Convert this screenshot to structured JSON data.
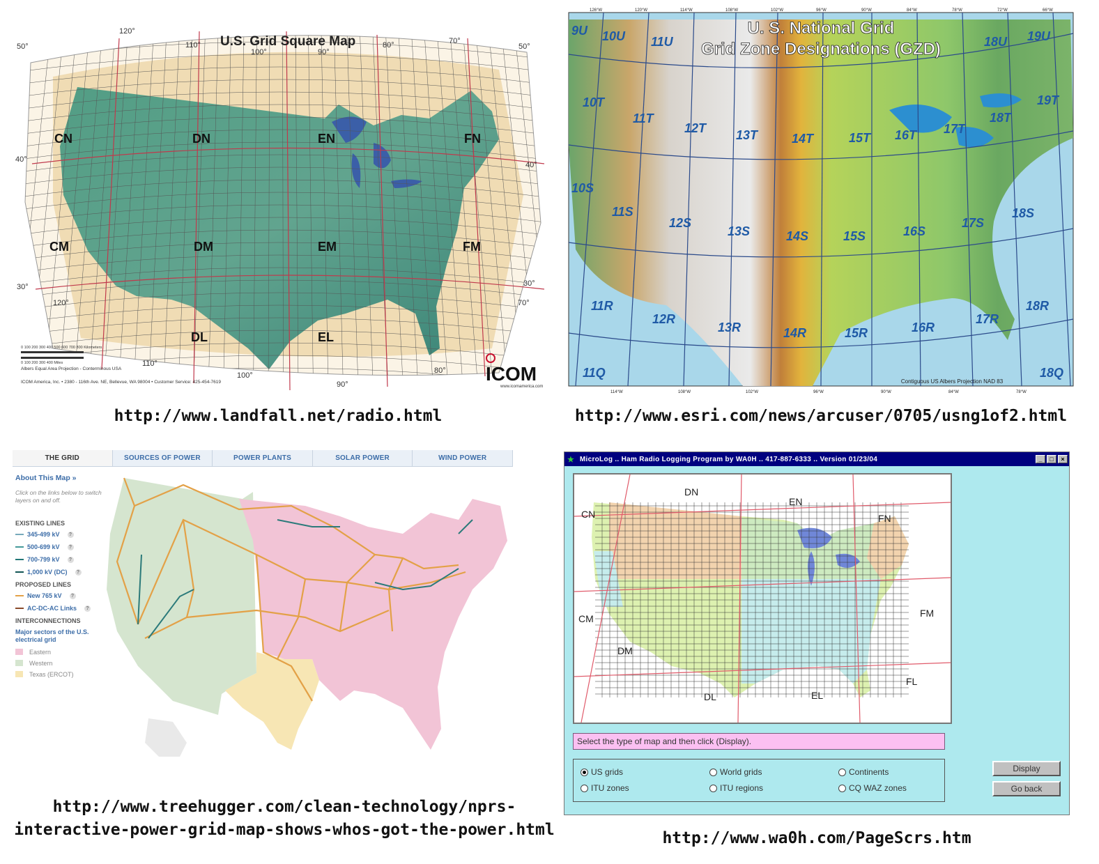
{
  "panel1": {
    "title": "U.S. Grid Square Map",
    "fields": [
      "CN",
      "DN",
      "EN",
      "FN",
      "CM",
      "DM",
      "EM",
      "FM",
      "DL",
      "EL"
    ],
    "lat_labels": [
      "50°",
      "40°",
      "30°",
      "50°",
      "40°",
      "30°"
    ],
    "lon_labels": [
      "120°",
      "110°",
      "100°",
      "90°",
      "80°",
      "70°",
      "120°",
      "110°",
      "100°",
      "90°",
      "80°",
      "70°"
    ],
    "projection": "Albers Equal Area Projection - Conterminous USA",
    "scale_km": "0  100 200 300 400 500 600 700 800 Kilometers",
    "scale_mi": "0    100    200    300    400 Miles",
    "company": "ICOM America, Inc.  •  2380 - 116th Ave. NE, Bellevue, WA 98004  •  Customer Service: 425-454-7619",
    "logo": "ICOM",
    "logo_url": "www.icomamerica.com",
    "caption": "http://www.landfall.net/radio.html"
  },
  "panel2": {
    "title_line1": "U. S. National Grid",
    "title_line2": "Grid Zone Designations (GZD)",
    "zones": [
      "9U",
      "10U",
      "11U",
      "18U",
      "19U",
      "10T",
      "11T",
      "12T",
      "13T",
      "14T",
      "15T",
      "16T",
      "17T",
      "18T",
      "19T",
      "10S",
      "11S",
      "12S",
      "13S",
      "14S",
      "15S",
      "16S",
      "17S",
      "18S",
      "11R",
      "12R",
      "13R",
      "14R",
      "15R",
      "16R",
      "17R",
      "18R",
      "11Q",
      "18Q"
    ],
    "top_ticks": [
      "126°W",
      "120°W",
      "114°W",
      "108°W",
      "102°W",
      "96°W",
      "90°W",
      "84°W",
      "78°W",
      "72°W",
      "66°W"
    ],
    "bottom_ticks": [
      "114°W",
      "108°W",
      "102°W",
      "96°W",
      "90°W",
      "84°W",
      "78°W"
    ],
    "footer": "Contiguous US Albers Projection NAD 83",
    "caption": "http://www.esri.com/news/arcuser/0705/usng1of2.html"
  },
  "panel3": {
    "tabs": [
      "THE GRID",
      "SOURCES OF POWER",
      "POWER PLANTS",
      "SOLAR POWER",
      "WIND POWER"
    ],
    "about": "About This Map »",
    "hint": "Click on the links below to switch layers on and off.",
    "existing_head": "EXISTING LINES",
    "existing": [
      "345-499 kV",
      "500-699 kV",
      "700-799 kV",
      "1,000 kV (DC)"
    ],
    "proposed_head": "PROPOSED LINES",
    "proposed": [
      "New 765 kV",
      "AC-DC-AC Links"
    ],
    "inter_head": "INTERCONNECTIONS",
    "inter_sub": "Major sectors of the U.S. electrical grid",
    "sectors": [
      "Eastern",
      "Western",
      "Texas (ERCOT)"
    ],
    "colors": {
      "eastern": "#f2c4d6",
      "western": "#d5e5cf",
      "texas": "#f7e6b4",
      "new": "#e3a147",
      "existing": "#2b7a7a"
    },
    "caption_line1": "http://www.treehugger.com/clean-technology/nprs-",
    "caption_line2": "interactive-power-grid-map-shows-whos-got-the-power.html"
  },
  "panel4": {
    "window_title": "MicroLog  ..  Ham Radio Logging Program by WA0H  ..  417-887-6333  ..  Version  01/23/04",
    "fields": [
      "DN",
      "EN",
      "CN",
      "FN",
      "CM",
      "FM",
      "DM",
      "DL",
      "EL",
      "FL"
    ],
    "status": "Select the type of map and then click (Display).",
    "radios": [
      "US grids",
      "World grids",
      "Continents",
      "ITU zones",
      "ITU regions",
      "CQ WAZ zones"
    ],
    "btn_display": "Display",
    "btn_back": "Go back",
    "caption": "http://www.wa0h.com/PageScrs.htm"
  }
}
